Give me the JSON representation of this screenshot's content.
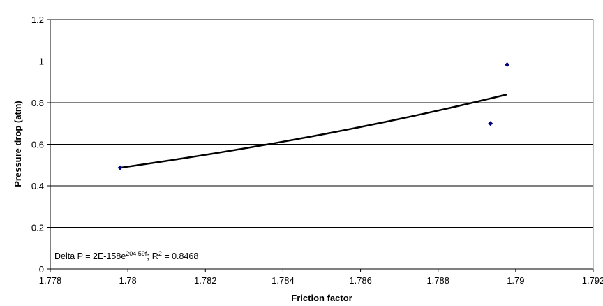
{
  "chart_data": {
    "type": "scatter",
    "xlabel": "Friction factor",
    "ylabel": "Pressure drop (atm)",
    "xlim": [
      1.778,
      1.792
    ],
    "ylim": [
      0,
      1.2
    ],
    "x_ticks": [
      "1.778",
      "1.78",
      "1.782",
      "1.784",
      "1.786",
      "1.788",
      "1.79",
      "1.792"
    ],
    "y_ticks": [
      "0",
      "0.2",
      "0.4",
      "0.6",
      "0.8",
      "1",
      "1.2"
    ],
    "grid": "horizontal",
    "legend": "none",
    "series": [
      {
        "points": [
          {
            "x": 1.7798,
            "y": 0.487
          },
          {
            "x": 1.78935,
            "y": 0.7
          },
          {
            "x": 1.78978,
            "y": 0.983
          }
        ],
        "color": "#000080",
        "marker": "diamond"
      }
    ],
    "trendline": {
      "type": "exponential",
      "a": 2e-158,
      "b": 204.59,
      "x_range": [
        1.7798,
        1.78978
      ],
      "y_range": [
        0.487,
        0.84
      ],
      "color": "#000000"
    },
    "annotation": {
      "text_prefix": "Delta P = 2E-158e",
      "exponent": "204.59f",
      "separator": ";",
      "r_label": "R",
      "r_power": "2",
      "text_suffix": " = 0.8468"
    }
  }
}
